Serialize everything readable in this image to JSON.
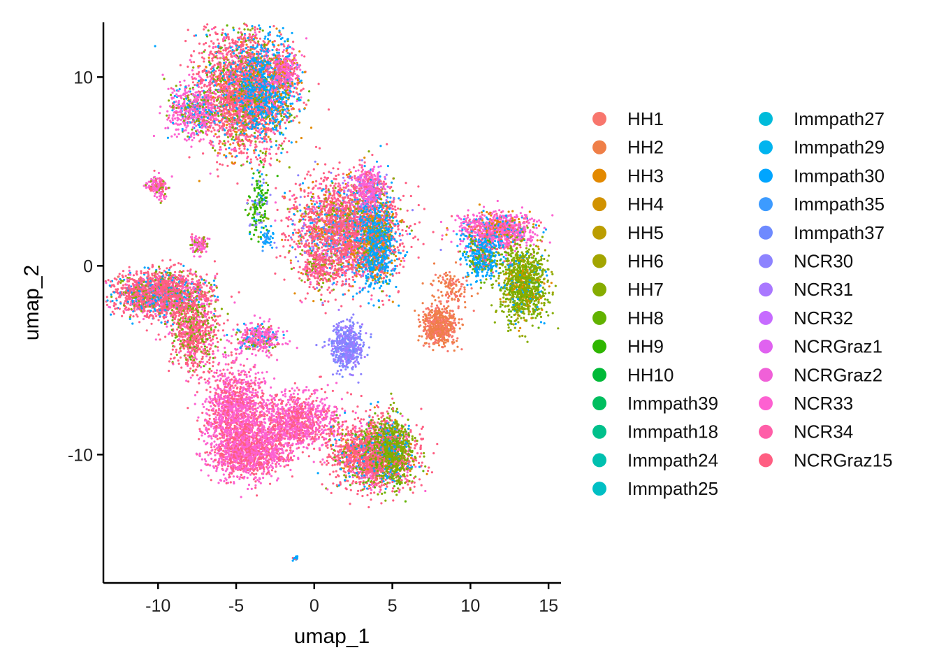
{
  "chart_data": {
    "type": "scatter",
    "title": "",
    "xlabel": "umap_1",
    "ylabel": "umap_2",
    "xlim": [
      -13.5,
      15.8
    ],
    "ylim": [
      -16.8,
      12.9
    ],
    "xticks": [
      -10,
      -5,
      0,
      5,
      10,
      15
    ],
    "xtick_labels": [
      "-10",
      "-5",
      "0",
      "5",
      "10",
      "15"
    ],
    "yticks": [
      10,
      0,
      -10
    ],
    "ytick_labels": [
      "10",
      "0",
      "-10"
    ],
    "grid": false,
    "legend_position": "right",
    "legend_columns": 2,
    "series": [
      {
        "name": "HH1",
        "color": "#F8766D"
      },
      {
        "name": "HH2",
        "color": "#EF7F48"
      },
      {
        "name": "HH3",
        "color": "#E38900"
      },
      {
        "name": "HH4",
        "color": "#D19200"
      },
      {
        "name": "HH5",
        "color": "#BB9D00"
      },
      {
        "name": "HH6",
        "color": "#A3A500"
      },
      {
        "name": "HH7",
        "color": "#86AC00"
      },
      {
        "name": "HH8",
        "color": "#62B200"
      },
      {
        "name": "HH9",
        "color": "#2FB600"
      },
      {
        "name": "HH10",
        "color": "#00BA38"
      },
      {
        "name": "Immpath39",
        "color": "#00BE5F"
      },
      {
        "name": "Immpath18",
        "color": "#00C08B"
      },
      {
        "name": "Immpath24",
        "color": "#00C0AF"
      },
      {
        "name": "Immpath25",
        "color": "#00BFC4"
      },
      {
        "name": "Immpath27",
        "color": "#00BBDA"
      },
      {
        "name": "Immpath29",
        "color": "#00B4EF"
      },
      {
        "name": "Immpath30",
        "color": "#00A5FF"
      },
      {
        "name": "Immpath35",
        "color": "#3D9BFF"
      },
      {
        "name": "Immpath37",
        "color": "#6E8AFF"
      },
      {
        "name": "NCR30",
        "color": "#8D83FF"
      },
      {
        "name": "NCR31",
        "color": "#A978FF"
      },
      {
        "name": "NCR32",
        "color": "#C66BFF"
      },
      {
        "name": "NCRGraz1",
        "color": "#E062F0"
      },
      {
        "name": "NCRGraz2",
        "color": "#F060D8"
      },
      {
        "name": "NCR33",
        "color": "#FD61D1"
      },
      {
        "name": "NCR34",
        "color": "#FF5EA8"
      },
      {
        "name": "NCRGraz15",
        "color": "#FF5E82"
      }
    ],
    "clusters": [
      {
        "cx": -4.6,
        "cy": 9.3,
        "sx": 1.4,
        "sy": 1.6,
        "n": 2600,
        "main": "#FF5E82",
        "mix": [
          "#FD61D1",
          "#86AC00",
          "#00A5FF",
          "#E38900",
          "#62B200"
        ]
      },
      {
        "cx": -3.0,
        "cy": 9.5,
        "sx": 0.9,
        "sy": 1.3,
        "n": 900,
        "main": "#00A5FF",
        "mix": [
          "#86AC00",
          "#FF5E82",
          "#FD61D1",
          "#E38900"
        ]
      },
      {
        "cx": -7.7,
        "cy": 8.2,
        "sx": 0.8,
        "sy": 0.7,
        "n": 500,
        "main": "#FD61D1",
        "mix": [
          "#FF5E82",
          "#86AC00",
          "#00A5FF"
        ]
      },
      {
        "cx": -1.9,
        "cy": 10.3,
        "sx": 0.5,
        "sy": 0.5,
        "n": 250,
        "main": "#FD61D1",
        "mix": [
          "#E38900",
          "#FF5E82"
        ]
      },
      {
        "cx": -10.0,
        "cy": 4.2,
        "sx": 0.35,
        "sy": 0.3,
        "n": 150,
        "main": "#FD61D1",
        "mix": [
          "#86AC00",
          "#FF5E82"
        ]
      },
      {
        "cx": -3.5,
        "cy": 3.2,
        "sx": 0.35,
        "sy": 0.9,
        "n": 160,
        "main": "#2FB600",
        "mix": [
          "#8D83FF",
          "#00A5FF",
          "#86AC00"
        ]
      },
      {
        "cx": -3.0,
        "cy": 1.5,
        "sx": 0.2,
        "sy": 0.3,
        "n": 40,
        "main": "#00A5FF",
        "mix": [
          "#3D9BFF"
        ]
      },
      {
        "cx": 2.0,
        "cy": 1.8,
        "sx": 1.6,
        "sy": 1.4,
        "n": 2600,
        "main": "#FF5E82",
        "mix": [
          "#FD61D1",
          "#00A5FF",
          "#86AC00",
          "#E38900",
          "#8D83FF"
        ]
      },
      {
        "cx": 4.0,
        "cy": 1.5,
        "sx": 0.6,
        "sy": 1.3,
        "n": 900,
        "main": "#00A5FF",
        "mix": [
          "#86AC00",
          "#FF5E82",
          "#E38900"
        ]
      },
      {
        "cx": 3.5,
        "cy": 4.2,
        "sx": 0.5,
        "sy": 0.5,
        "n": 300,
        "main": "#FD61D1",
        "mix": [
          "#C66BFF",
          "#FF5E82"
        ]
      },
      {
        "cx": 0.2,
        "cy": -0.1,
        "sx": 0.4,
        "sy": 0.4,
        "n": 150,
        "main": "#FF5E82",
        "mix": [
          "#86AC00",
          "#FD61D1"
        ]
      },
      {
        "cx": 2.1,
        "cy": -4.3,
        "sx": 0.5,
        "sy": 0.6,
        "n": 500,
        "main": "#8D83FF",
        "mix": [
          "#A978FF",
          "#6E8AFF"
        ]
      },
      {
        "cx": 11.7,
        "cy": 1.9,
        "sx": 1.2,
        "sy": 0.5,
        "n": 900,
        "main": "#FD61D1",
        "mix": [
          "#FF5E82",
          "#E38900",
          "#00A5FF"
        ]
      },
      {
        "cx": 10.8,
        "cy": 0.5,
        "sx": 0.6,
        "sy": 0.6,
        "n": 400,
        "main": "#00A5FF",
        "mix": [
          "#62B200",
          "#86AC00",
          "#FF5E82"
        ]
      },
      {
        "cx": 13.4,
        "cy": -1.0,
        "sx": 0.7,
        "sy": 1.0,
        "n": 1100,
        "main": "#86AC00",
        "mix": [
          "#62B200",
          "#A3A500",
          "#00A5FF",
          "#E38900"
        ]
      },
      {
        "cx": 8.0,
        "cy": -3.2,
        "sx": 0.6,
        "sy": 0.5,
        "n": 500,
        "main": "#EF7F48",
        "mix": [
          "#F8766D"
        ]
      },
      {
        "cx": 8.8,
        "cy": -1.2,
        "sx": 0.6,
        "sy": 0.6,
        "n": 120,
        "main": "#EF7F48",
        "mix": [
          "#F8766D"
        ]
      },
      {
        "cx": -9.8,
        "cy": -1.5,
        "sx": 1.5,
        "sy": 0.6,
        "n": 1800,
        "main": "#FF5E82",
        "mix": [
          "#FD61D1",
          "#86AC00",
          "#00A5FF"
        ]
      },
      {
        "cx": -7.7,
        "cy": -3.6,
        "sx": 0.7,
        "sy": 1.0,
        "n": 700,
        "main": "#FF5E82",
        "mix": [
          "#86AC00",
          "#62B200",
          "#FD61D1"
        ]
      },
      {
        "cx": -7.4,
        "cy": 1.1,
        "sx": 0.3,
        "sy": 0.3,
        "n": 100,
        "main": "#FD61D1",
        "mix": [
          "#FF5E82",
          "#86AC00"
        ]
      },
      {
        "cx": -3.6,
        "cy": -3.8,
        "sx": 0.7,
        "sy": 0.4,
        "n": 350,
        "main": "#FD61D1",
        "mix": [
          "#00A5FF",
          "#FF5E82",
          "#86AC00"
        ]
      },
      {
        "cx": -5.0,
        "cy": -8.0,
        "sx": 1.0,
        "sy": 1.4,
        "n": 1400,
        "main": "#FD61D1",
        "mix": [
          "#FF5E82"
        ]
      },
      {
        "cx": -4.0,
        "cy": -9.8,
        "sx": 1.2,
        "sy": 0.7,
        "n": 1000,
        "main": "#FD61D1",
        "mix": [
          "#FF5E82"
        ]
      },
      {
        "cx": -1.0,
        "cy": -8.2,
        "sx": 1.3,
        "sy": 0.7,
        "n": 1000,
        "main": "#FD61D1",
        "mix": [
          "#FF5E82"
        ]
      },
      {
        "cx": 3.8,
        "cy": -10.0,
        "sx": 1.3,
        "sy": 0.9,
        "n": 1800,
        "main": "#FF5E82",
        "mix": [
          "#FD61D1",
          "#86AC00",
          "#00A5FF",
          "#E38900",
          "#62B200"
        ]
      },
      {
        "cx": 5.0,
        "cy": -9.8,
        "sx": 0.6,
        "sy": 0.9,
        "n": 600,
        "main": "#86AC00",
        "mix": [
          "#00A5FF",
          "#62B200",
          "#FF5E82"
        ]
      },
      {
        "cx": -1.2,
        "cy": -15.5,
        "sx": 0.08,
        "sy": 0.06,
        "n": 20,
        "main": "#00A5FF",
        "mix": [
          "#FF5E82"
        ]
      }
    ]
  }
}
